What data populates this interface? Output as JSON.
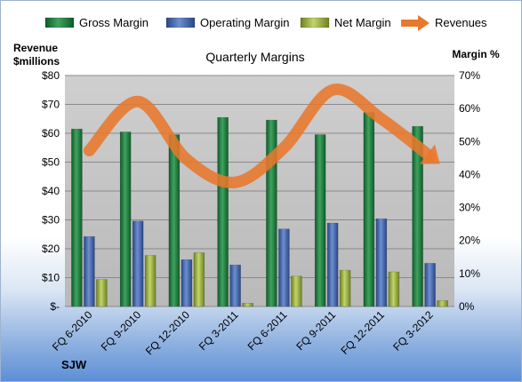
{
  "chart_data": {
    "type": "bar",
    "title": "Quarterly Margins",
    "footer": "SJW",
    "categories": [
      "FQ 6-2010",
      "FQ 9-2010",
      "FQ 12-2010",
      "FQ 3-2011",
      "FQ 6-2011",
      "FQ 9-2011",
      "FQ 12-2011",
      "FQ 3-2012"
    ],
    "left_axis": {
      "label_line1": "Revenue",
      "label_line2": "$millions",
      "ylim": [
        0,
        80
      ],
      "tick_labels": [
        "$-",
        "$10",
        "$20",
        "$30",
        "$40",
        "$50",
        "$60",
        "$70",
        "$80"
      ]
    },
    "right_axis": {
      "label": "Margin %",
      "ylim": [
        0,
        70
      ],
      "tick_labels": [
        "0%",
        "10%",
        "20%",
        "30%",
        "40%",
        "50%",
        "60%",
        "70%"
      ]
    },
    "series": [
      {
        "name": "Gross Margin",
        "axis": "right",
        "kind": "bar",
        "color": "#1f7a3e",
        "values": [
          53.8,
          52.9,
          52.1,
          57.3,
          56.5,
          52.1,
          58.8,
          54.6
        ]
      },
      {
        "name": "Operating Margin",
        "axis": "right",
        "kind": "bar",
        "color": "#3b5fa6",
        "values": [
          21.2,
          25.9,
          14.2,
          12.6,
          23.5,
          25.3,
          26.6,
          13.1
        ]
      },
      {
        "name": "Net Margin",
        "axis": "right",
        "kind": "bar",
        "color": "#8fa830",
        "values": [
          8.2,
          15.5,
          16.3,
          1.0,
          9.2,
          11.0,
          10.5,
          1.8
        ]
      },
      {
        "name": "Revenues",
        "axis": "left",
        "kind": "line",
        "color": "#e8782c",
        "values": [
          54,
          71,
          51,
          43,
          55,
          75,
          65,
          52
        ]
      }
    ],
    "legend_position": "top",
    "grid": true
  }
}
